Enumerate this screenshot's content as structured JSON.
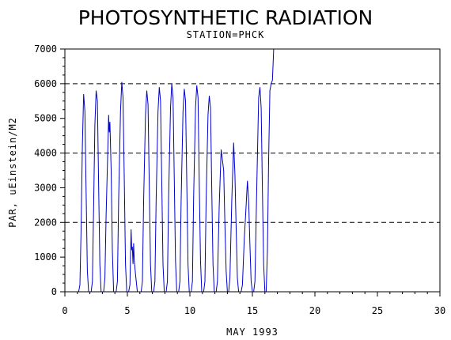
{
  "chart_data": {
    "type": "line",
    "title": "PHOTOSYNTHETIC RADIATION",
    "subtitle": "STATION=PHCK",
    "xlabel": "MAY 1993",
    "ylabel": "PAR, uEinstein/M2",
    "xlim": [
      0,
      30
    ],
    "ylim": [
      0,
      7000
    ],
    "x_ticks": [
      0,
      5,
      10,
      15,
      20,
      25,
      30
    ],
    "y_ticks": [
      0,
      1000,
      2000,
      3000,
      4000,
      5000,
      6000,
      7000
    ],
    "reference_lines": [
      2000,
      4000,
      6000
    ],
    "line_color": "#0000cc",
    "series": [
      {
        "points": [
          [
            1.0,
            0
          ],
          [
            1.1,
            0
          ],
          [
            1.2,
            200
          ],
          [
            1.3,
            1800
          ],
          [
            1.4,
            4200
          ],
          [
            1.5,
            5700
          ],
          [
            1.6,
            5200
          ],
          [
            1.7,
            2800
          ],
          [
            1.8,
            600
          ],
          [
            1.9,
            0
          ],
          [
            2.1,
            0
          ],
          [
            2.2,
            300
          ],
          [
            2.3,
            2400
          ],
          [
            2.4,
            4800
          ],
          [
            2.5,
            5800
          ],
          [
            2.6,
            5500
          ],
          [
            2.7,
            3000
          ],
          [
            2.8,
            800
          ],
          [
            2.9,
            0
          ],
          [
            3.1,
            0
          ],
          [
            3.2,
            400
          ],
          [
            3.3,
            2200
          ],
          [
            3.45,
            4300
          ],
          [
            3.5,
            5100
          ],
          [
            3.55,
            4600
          ],
          [
            3.6,
            4900
          ],
          [
            3.7,
            3500
          ],
          [
            3.8,
            1200
          ],
          [
            3.9,
            0
          ],
          [
            4.1,
            0
          ],
          [
            4.2,
            300
          ],
          [
            4.3,
            2600
          ],
          [
            4.45,
            5200
          ],
          [
            4.55,
            6050
          ],
          [
            4.65,
            5600
          ],
          [
            4.75,
            3200
          ],
          [
            4.85,
            800
          ],
          [
            4.95,
            0
          ],
          [
            5.1,
            0
          ],
          [
            5.2,
            200
          ],
          [
            5.3,
            1800
          ],
          [
            5.35,
            1200
          ],
          [
            5.4,
            1300
          ],
          [
            5.45,
            800
          ],
          [
            5.5,
            1400
          ],
          [
            5.55,
            900
          ],
          [
            5.65,
            500
          ],
          [
            5.8,
            0
          ],
          [
            6.1,
            0
          ],
          [
            6.2,
            300
          ],
          [
            6.3,
            2600
          ],
          [
            6.45,
            5100
          ],
          [
            6.55,
            5800
          ],
          [
            6.65,
            5400
          ],
          [
            6.75,
            3000
          ],
          [
            6.85,
            800
          ],
          [
            6.95,
            0
          ],
          [
            7.1,
            0
          ],
          [
            7.2,
            300
          ],
          [
            7.3,
            2600
          ],
          [
            7.45,
            5200
          ],
          [
            7.55,
            5900
          ],
          [
            7.65,
            5500
          ],
          [
            7.75,
            3100
          ],
          [
            7.85,
            800
          ],
          [
            7.95,
            0
          ],
          [
            8.1,
            0
          ],
          [
            8.2,
            300
          ],
          [
            8.3,
            2700
          ],
          [
            8.45,
            5300
          ],
          [
            8.55,
            6000
          ],
          [
            8.65,
            5600
          ],
          [
            8.75,
            3200
          ],
          [
            8.85,
            900
          ],
          [
            8.95,
            0
          ],
          [
            9.1,
            0
          ],
          [
            9.2,
            300
          ],
          [
            9.3,
            2600
          ],
          [
            9.45,
            5200
          ],
          [
            9.55,
            5850
          ],
          [
            9.65,
            5500
          ],
          [
            9.75,
            3100
          ],
          [
            9.85,
            800
          ],
          [
            9.95,
            0
          ],
          [
            10.1,
            0
          ],
          [
            10.2,
            300
          ],
          [
            10.3,
            2700
          ],
          [
            10.45,
            5300
          ],
          [
            10.55,
            5950
          ],
          [
            10.65,
            5600
          ],
          [
            10.75,
            3200
          ],
          [
            10.85,
            900
          ],
          [
            10.95,
            0
          ],
          [
            11.1,
            0
          ],
          [
            11.2,
            300
          ],
          [
            11.3,
            2600
          ],
          [
            11.45,
            5100
          ],
          [
            11.55,
            5650
          ],
          [
            11.65,
            5300
          ],
          [
            11.75,
            3000
          ],
          [
            11.85,
            800
          ],
          [
            11.95,
            0
          ],
          [
            12.1,
            0
          ],
          [
            12.2,
            300
          ],
          [
            12.35,
            2500
          ],
          [
            12.5,
            4100
          ],
          [
            12.6,
            3800
          ],
          [
            12.7,
            3500
          ],
          [
            12.8,
            2000
          ],
          [
            12.9,
            600
          ],
          [
            13.0,
            0
          ],
          [
            13.1,
            0
          ],
          [
            13.2,
            400
          ],
          [
            13.35,
            2600
          ],
          [
            13.5,
            4300
          ],
          [
            13.6,
            3400
          ],
          [
            13.7,
            1800
          ],
          [
            13.8,
            400
          ],
          [
            13.9,
            0
          ],
          [
            14.1,
            0
          ],
          [
            14.2,
            200
          ],
          [
            14.35,
            1500
          ],
          [
            14.5,
            2500
          ],
          [
            14.6,
            3200
          ],
          [
            14.7,
            2600
          ],
          [
            14.8,
            1400
          ],
          [
            14.9,
            300
          ],
          [
            15.0,
            0
          ],
          [
            15.1,
            0
          ],
          [
            15.2,
            300
          ],
          [
            15.35,
            3000
          ],
          [
            15.5,
            5600
          ],
          [
            15.6,
            5900
          ],
          [
            15.7,
            5300
          ],
          [
            15.8,
            3000
          ],
          [
            15.9,
            800
          ],
          [
            16.0,
            0
          ],
          [
            16.1,
            0
          ],
          [
            16.2,
            1200
          ],
          [
            16.3,
            3800
          ],
          [
            16.4,
            5800
          ],
          [
            16.5,
            6000
          ],
          [
            16.6,
            6100
          ],
          [
            16.7,
            7000
          ]
        ]
      }
    ]
  }
}
